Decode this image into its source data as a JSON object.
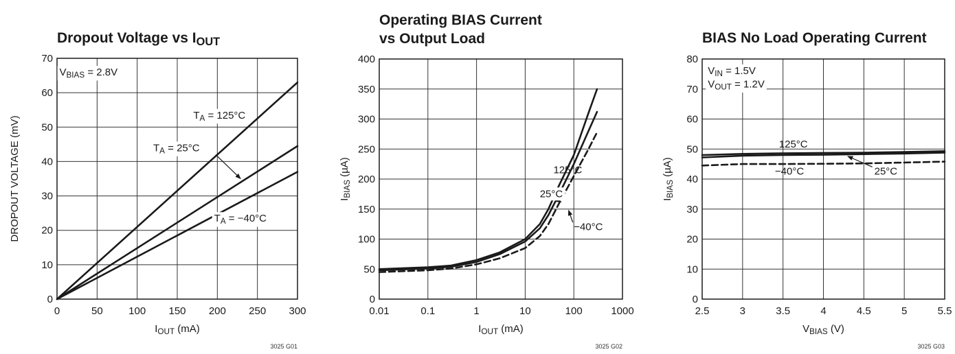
{
  "colors": {
    "line": "#1a1a1a",
    "grid": "#333333",
    "background": "#ffffff"
  },
  "chart_data": [
    {
      "id": "g01",
      "type": "line",
      "title_parts": [
        {
          "t": "Dropout Voltage vs I"
        },
        {
          "t": "OUT",
          "sub": true
        }
      ],
      "xlabel_parts": [
        {
          "t": "I"
        },
        {
          "t": "OUT",
          "sub": true
        },
        {
          "t": " (mA)"
        }
      ],
      "ylabel_parts": [
        {
          "t": "DROPOUT VOLTAGE (mV)"
        }
      ],
      "x_scale": "linear",
      "xlim": [
        0,
        300
      ],
      "ylim": [
        0,
        70
      ],
      "xticks": [
        0,
        50,
        100,
        150,
        200,
        250,
        300
      ],
      "xtick_labels": [
        "0",
        "50",
        "100",
        "150",
        "200",
        "250",
        "300"
      ],
      "yticks": [
        0,
        10,
        20,
        30,
        40,
        50,
        60,
        70
      ],
      "ytick_labels": [
        "0",
        "10",
        "20",
        "30",
        "40",
        "50",
        "60",
        "70"
      ],
      "grid": true,
      "code": "3025 G01",
      "series": [
        {
          "name": "T_A = 125°C",
          "dash": false,
          "x": [
            0,
            300
          ],
          "y": [
            0,
            63
          ]
        },
        {
          "name": "T_A = 25°C",
          "dash": false,
          "x": [
            0,
            300
          ],
          "y": [
            0,
            44.5
          ]
        },
        {
          "name": "T_A = −40°C",
          "dash": false,
          "x": [
            0,
            300
          ],
          "y": [
            0,
            37
          ]
        }
      ],
      "annotations": [
        {
          "parts": [
            {
              "t": "V"
            },
            {
              "t": "BIAS",
              "sub": true
            },
            {
              "t": " = 2.8V"
            }
          ],
          "x": 3,
          "y": 65,
          "bg": true
        },
        {
          "parts": [
            {
              "t": "T"
            },
            {
              "t": "A",
              "sub": true
            },
            {
              "t": " = 125°C"
            }
          ],
          "x": 170,
          "y": 52.5,
          "bg": true
        },
        {
          "parts": [
            {
              "t": "T"
            },
            {
              "t": "A",
              "sub": true
            },
            {
              "t": " = 25°C"
            }
          ],
          "x": 120,
          "y": 43,
          "bg": true,
          "arrow_from": [
            198,
            42
          ],
          "arrow_to": [
            229,
            35
          ]
        },
        {
          "parts": [
            {
              "t": "T"
            },
            {
              "t": "A",
              "sub": true
            },
            {
              "t": " = −40°C"
            }
          ],
          "x": 196,
          "y": 22.5,
          "bg": true
        }
      ]
    },
    {
      "id": "g02",
      "type": "line",
      "title_parts": [
        {
          "t": "Operating BIAS Current"
        }
      ],
      "title_line2_parts": [
        {
          "t": "vs Output Load"
        }
      ],
      "xlabel_parts": [
        {
          "t": "I"
        },
        {
          "t": "OUT",
          "sub": true
        },
        {
          "t": " (mA)"
        }
      ],
      "ylabel_parts": [
        {
          "t": "I"
        },
        {
          "t": "BIAS",
          "sub": true
        },
        {
          "t": " (µA)"
        }
      ],
      "x_scale": "log",
      "xlim": [
        0.01,
        1000
      ],
      "ylim": [
        0,
        400
      ],
      "xticks": [
        0.01,
        0.1,
        1,
        10,
        100,
        1000
      ],
      "xtick_labels": [
        "0.01",
        "0.1",
        "1",
        "10",
        "100",
        "1000"
      ],
      "yticks": [
        0,
        50,
        100,
        150,
        200,
        250,
        300,
        350,
        400
      ],
      "ytick_labels": [
        "0",
        "50",
        "100",
        "150",
        "200",
        "250",
        "300",
        "350",
        "400"
      ],
      "grid": true,
      "code": "3025 G02",
      "series": [
        {
          "name": "125°C",
          "dash": false,
          "x": [
            0.01,
            0.1,
            0.3,
            1,
            3,
            10,
            20,
            30,
            50,
            100,
            200,
            300
          ],
          "y": [
            50,
            53,
            56,
            65,
            78,
            100,
            125,
            150,
            190,
            240,
            310,
            350
          ]
        },
        {
          "name": "25°C",
          "dash": false,
          "x": [
            0.01,
            0.1,
            0.3,
            1,
            3,
            10,
            20,
            30,
            50,
            100,
            200,
            300
          ],
          "y": [
            48,
            51,
            54,
            62,
            75,
            96,
            118,
            140,
            175,
            225,
            280,
            312
          ]
        },
        {
          "name": "−40°C",
          "dash": true,
          "x": [
            0.01,
            0.1,
            0.3,
            1,
            3,
            10,
            20,
            30,
            50,
            100,
            200,
            300
          ],
          "y": [
            45,
            48,
            51,
            58,
            68,
            85,
            105,
            125,
            160,
            205,
            250,
            278
          ]
        }
      ],
      "annotations": [
        {
          "parts": [
            {
              "t": "125°C"
            }
          ],
          "x": 38,
          "y": 210,
          "bg": false
        },
        {
          "parts": [
            {
              "t": "25°C"
            }
          ],
          "x": 20,
          "y": 170,
          "bg": true,
          "arrow_from": [
            33,
            170
          ],
          "arrow_to": [
            55,
            162
          ]
        },
        {
          "parts": [
            {
              "t": "−40°C"
            }
          ],
          "x": 100,
          "y": 115,
          "bg": false,
          "arrow_from": [
            95,
            128
          ],
          "arrow_to": [
            78,
            148
          ]
        }
      ]
    },
    {
      "id": "g03",
      "type": "line",
      "title_parts": [
        {
          "t": "BIAS No Load Operating Current"
        }
      ],
      "xlabel_parts": [
        {
          "t": "V"
        },
        {
          "t": "BIAS",
          "sub": true
        },
        {
          "t": " (V)"
        }
      ],
      "ylabel_parts": [
        {
          "t": "I"
        },
        {
          "t": "BIAS",
          "sub": true
        },
        {
          "t": " (µA)"
        }
      ],
      "x_scale": "linear",
      "xlim": [
        2.5,
        5.5
      ],
      "ylim": [
        0,
        80
      ],
      "xticks": [
        2.5,
        3,
        3.5,
        4,
        4.5,
        5,
        5.5
      ],
      "xtick_labels": [
        "2.5",
        "3",
        "3.5",
        "4",
        "4.5",
        "5",
        "5.5"
      ],
      "yticks": [
        0,
        10,
        20,
        30,
        40,
        50,
        60,
        70,
        80
      ],
      "ytick_labels": [
        "0",
        "10",
        "20",
        "30",
        "40",
        "50",
        "60",
        "70",
        "80"
      ],
      "grid": true,
      "code": "3025 G03",
      "series": [
        {
          "name": "125°C",
          "dash": false,
          "x": [
            2.5,
            3,
            3.5,
            4,
            4.5,
            5,
            5.5
          ],
          "y": [
            48,
            48.4,
            48.6,
            48.7,
            48.8,
            49,
            49.3
          ]
        },
        {
          "name": "25°C",
          "dash": false,
          "x": [
            2.5,
            3,
            3.5,
            4,
            4.5,
            5,
            5.5
          ],
          "y": [
            47.2,
            47.8,
            48,
            48.1,
            48.3,
            48.5,
            48.8
          ]
        },
        {
          "name": "−40°C",
          "dash": true,
          "x": [
            2.5,
            3,
            3.5,
            4,
            4.5,
            5,
            5.5
          ],
          "y": [
            44.5,
            45,
            45,
            45.1,
            45.2,
            45.5,
            45.8
          ]
        }
      ],
      "annotations": [
        {
          "parts": [
            {
              "t": "V"
            },
            {
              "t": "IN",
              "sub": true
            },
            {
              "t": " = 1.5V"
            }
          ],
          "x": 2.57,
          "y": 75,
          "bg": true
        },
        {
          "parts": [
            {
              "t": "V"
            },
            {
              "t": "OUT",
              "sub": true
            },
            {
              "t": " = 1.2V"
            }
          ],
          "x": 2.57,
          "y": 70.5,
          "bg": true
        },
        {
          "parts": [
            {
              "t": "125°C"
            }
          ],
          "x": 3.45,
          "y": 50.5,
          "bg": false
        },
        {
          "parts": [
            {
              "t": "−40°C"
            }
          ],
          "x": 3.4,
          "y": 41.5,
          "bg": false
        },
        {
          "parts": [
            {
              "t": "25°C"
            }
          ],
          "x": 4.63,
          "y": 41.5,
          "bg": true,
          "arrow_from": [
            4.65,
            43.5
          ],
          "arrow_to": [
            4.3,
            47.6
          ]
        }
      ]
    }
  ]
}
